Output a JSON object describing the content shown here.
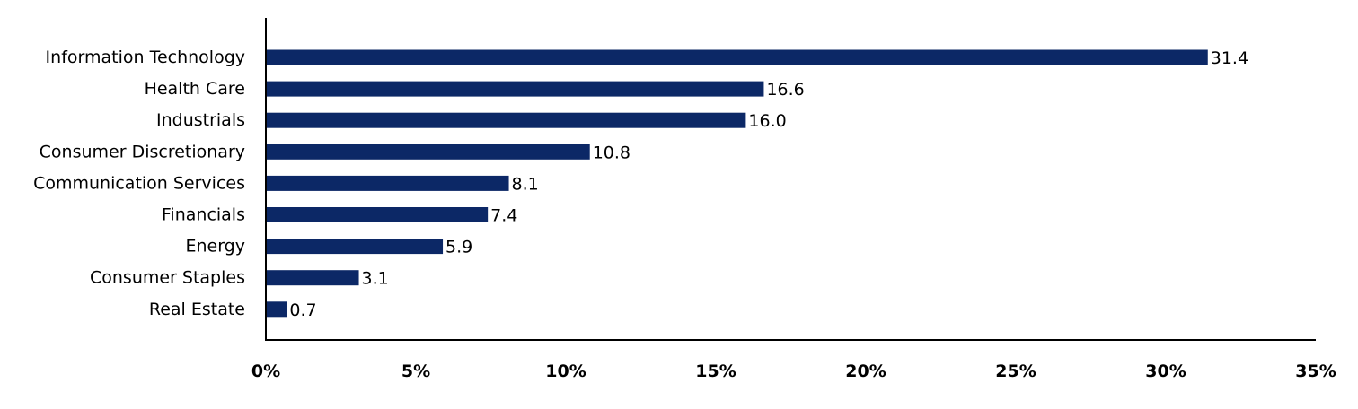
{
  "chart_data": {
    "type": "bar",
    "orientation": "horizontal",
    "categories": [
      "Information Technology",
      "Health Care",
      "Industrials",
      "Consumer Discretionary",
      "Communication Services",
      "Financials",
      "Energy",
      "Consumer Staples",
      "Real Estate"
    ],
    "values": [
      31.4,
      16.6,
      16.0,
      10.8,
      8.1,
      7.4,
      5.9,
      3.1,
      0.7
    ],
    "data_labels": [
      "31.4",
      "16.6",
      "16.0",
      "10.8",
      "8.1",
      "7.4",
      "5.9",
      "3.1",
      "0.7"
    ],
    "xlim": [
      0,
      35
    ],
    "x_ticks": [
      0,
      5,
      10,
      15,
      20,
      25,
      30,
      35
    ],
    "x_tick_labels": [
      "0%",
      "5%",
      "10%",
      "15%",
      "20%",
      "25%",
      "30%",
      "35%"
    ],
    "title": "",
    "xlabel": "",
    "ylabel": "",
    "grid": false,
    "legend": "none",
    "colors": {
      "bar": "#0c2866",
      "axis": "#000000",
      "text": "#000000"
    }
  }
}
